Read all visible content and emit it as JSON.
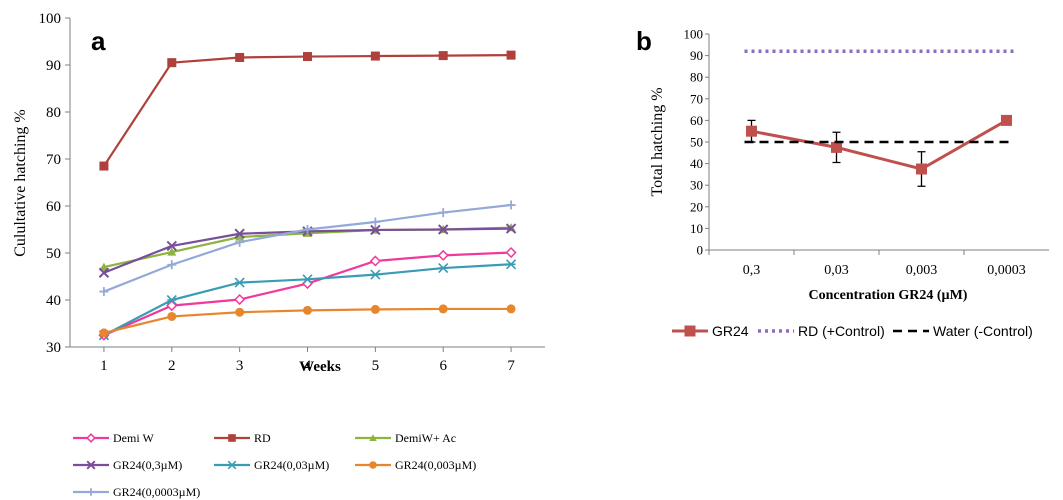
{
  "panels": {
    "a": {
      "letter": "a"
    },
    "b": {
      "letter": "b"
    }
  },
  "chart_data": [
    {
      "id": "a",
      "type": "line",
      "title": "",
      "xlabel": "Weeks",
      "ylabel": "Culultative hatching %",
      "x": [
        1,
        2,
        3,
        4,
        5,
        6,
        7
      ],
      "xlim": [
        0.5,
        7.5
      ],
      "ylim": [
        30,
        100
      ],
      "yticks": [
        30,
        40,
        50,
        60,
        70,
        80,
        90,
        100
      ],
      "grid": false,
      "legend_position": "bottom",
      "series": [
        {
          "name": "Demi W",
          "color": "#f0399b",
          "marker": "diamond-open",
          "values": [
            32.5,
            38.8,
            40.1,
            43.5,
            48.3,
            49.5,
            50.1
          ]
        },
        {
          "name": "RD",
          "color": "#b0403c",
          "marker": "square",
          "values": [
            68.5,
            90.5,
            91.6,
            91.8,
            91.9,
            92.0,
            92.1
          ]
        },
        {
          "name": "DemiW+ Ac",
          "color": "#8db441",
          "marker": "triangle",
          "values": [
            47.0,
            50.2,
            53.4,
            54.2,
            54.9,
            55.0,
            55.4
          ]
        },
        {
          "name": "GR24(0,3µM)",
          "color": "#7a4f9a",
          "marker": "x",
          "values": [
            45.8,
            51.5,
            54.1,
            54.6,
            54.9,
            55.0,
            55.2
          ]
        },
        {
          "name": "GR24(0,03µM)",
          "color": "#3a9bb5",
          "marker": "asterisk",
          "values": [
            32.5,
            40.0,
            43.7,
            44.4,
            45.4,
            46.8,
            47.6
          ]
        },
        {
          "name": "GR24(0,003µM)",
          "color": "#e8862e",
          "marker": "circle",
          "values": [
            33.0,
            36.5,
            37.4,
            37.8,
            38.0,
            38.1,
            38.1
          ]
        },
        {
          "name": "GR24(0,0003µM)",
          "color": "#94a9d8",
          "marker": "plus",
          "values": [
            41.8,
            47.5,
            52.3,
            55.0,
            56.6,
            58.6,
            60.2
          ]
        }
      ]
    },
    {
      "id": "b",
      "type": "line",
      "title": "",
      "xlabel": "Concentration GR24 (µM)",
      "ylabel": "Total hatching %",
      "categories": [
        "0,3",
        "0,03",
        "0,003",
        "0,0003"
      ],
      "ylim": [
        0,
        100
      ],
      "yticks": [
        0,
        10,
        20,
        30,
        40,
        50,
        60,
        70,
        80,
        90,
        100
      ],
      "grid": false,
      "legend_position": "bottom",
      "series": [
        {
          "name": "GR24",
          "color": "#c0504d",
          "style": "solid",
          "marker": "square",
          "values": [
            55,
            47.5,
            37.5,
            60
          ],
          "errors": [
            5,
            7,
            8,
            2
          ]
        },
        {
          "name": "RD (+Control)",
          "color": "#8e6bbf",
          "style": "dotted",
          "values": [
            92,
            92,
            92,
            92
          ]
        },
        {
          "name": "Water (-Control)",
          "color": "#000000",
          "style": "dashed",
          "values": [
            50,
            50,
            50,
            50
          ]
        }
      ]
    }
  ]
}
